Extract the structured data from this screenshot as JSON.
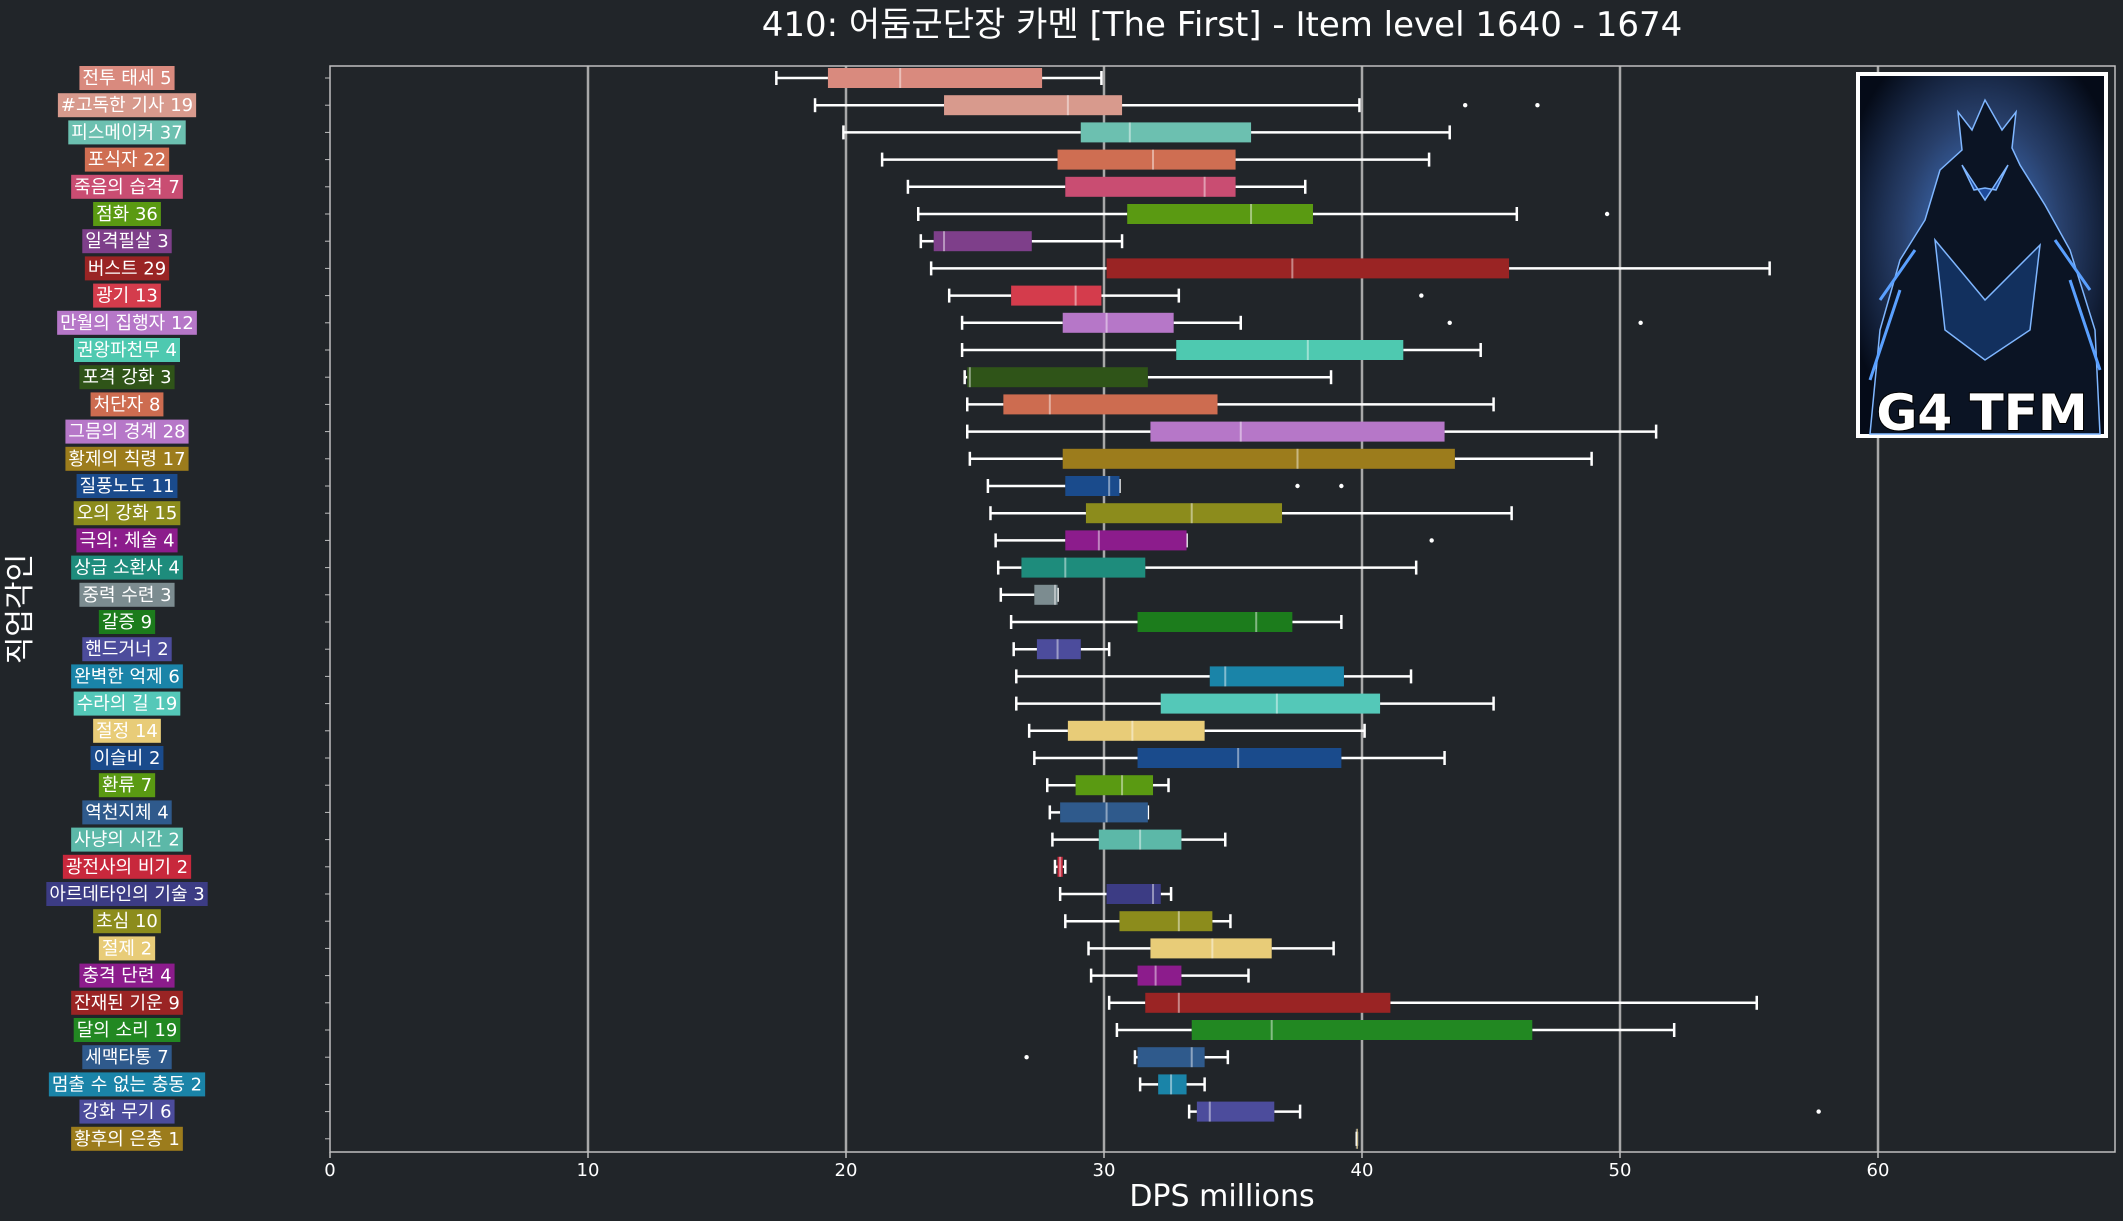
{
  "chart_data": {
    "type": "boxplot",
    "title": "410: 어둠군단장 카멘 [The First] - Item level 1640 - 1674",
    "xlabel": "DPS millions",
    "ylabel": "직업각인",
    "xlim": [
      0,
      69
    ],
    "xticks": [
      0,
      10,
      20,
      30,
      40,
      50,
      60
    ],
    "grid": "vertical",
    "badge": {
      "text": "G4 TFM",
      "position": "top-right"
    },
    "series": [
      {
        "label": "전투 태세 5",
        "color": "#d98a7e",
        "whisker_low": 17.3,
        "q1": 19.3,
        "median": 22.1,
        "q3": 27.6,
        "whisker_high": 29.9,
        "outliers": []
      },
      {
        "label": "#고독한 기사 19",
        "color": "#d89a8d",
        "whisker_low": 18.8,
        "q1": 23.8,
        "median": 28.6,
        "q3": 30.7,
        "whisker_high": 39.9,
        "outliers": [
          44.0,
          46.8
        ]
      },
      {
        "label": "피스메이커 37",
        "color": "#6cc0b0",
        "whisker_low": 19.9,
        "q1": 29.1,
        "median": 31.0,
        "q3": 35.7,
        "whisker_high": 43.4,
        "outliers": []
      },
      {
        "label": "포식자 22",
        "color": "#cf6e52",
        "whisker_low": 21.4,
        "q1": 28.2,
        "median": 31.9,
        "q3": 35.1,
        "whisker_high": 42.6,
        "outliers": []
      },
      {
        "label": "죽음의 습격 7",
        "color": "#c94d72",
        "whisker_low": 22.4,
        "q1": 28.5,
        "median": 33.9,
        "q3": 35.1,
        "whisker_high": 37.8,
        "outliers": []
      },
      {
        "label": "점화 36",
        "color": "#5a9a12",
        "whisker_low": 22.8,
        "q1": 30.9,
        "median": 35.7,
        "q3": 38.1,
        "whisker_high": 46.0,
        "outliers": [
          49.5
        ]
      },
      {
        "label": "일격필살 3",
        "color": "#7e3f8a",
        "whisker_low": 22.9,
        "q1": 23.4,
        "median": 23.8,
        "q3": 27.2,
        "whisker_high": 30.7,
        "outliers": []
      },
      {
        "label": "버스트 29",
        "color": "#9a2424",
        "whisker_low": 23.3,
        "q1": 30.1,
        "median": 37.3,
        "q3": 45.7,
        "whisker_high": 55.8,
        "outliers": []
      },
      {
        "label": "광기 13",
        "color": "#d43c4c",
        "whisker_low": 24.0,
        "q1": 26.4,
        "median": 28.9,
        "q3": 29.9,
        "whisker_high": 32.9,
        "outliers": [
          42.3
        ]
      },
      {
        "label": "만월의 집행자 12",
        "color": "#b677c8",
        "whisker_low": 24.5,
        "q1": 28.4,
        "median": 30.1,
        "q3": 32.7,
        "whisker_high": 35.3,
        "outliers": [
          43.4,
          50.8
        ]
      },
      {
        "label": "권왕파천무 4",
        "color": "#4ec9b0",
        "whisker_low": 24.5,
        "q1": 32.8,
        "median": 37.9,
        "q3": 41.6,
        "whisker_high": 44.6,
        "outliers": []
      },
      {
        "label": "포격 강화 3",
        "color": "#2f5418",
        "whisker_low": 24.6,
        "q1": 24.7,
        "median": 24.8,
        "q3": 31.7,
        "whisker_high": 38.8,
        "outliers": []
      },
      {
        "label": "처단자 8",
        "color": "#cd6c50",
        "whisker_low": 24.7,
        "q1": 26.1,
        "median": 27.9,
        "q3": 34.4,
        "whisker_high": 45.1,
        "outliers": []
      },
      {
        "label": "그믐의 경계 28",
        "color": "#b677c8",
        "whisker_low": 24.7,
        "q1": 31.8,
        "median": 35.3,
        "q3": 43.2,
        "whisker_high": 51.4,
        "outliers": []
      },
      {
        "label": "황제의 칙령 17",
        "color": "#9c7c1c",
        "whisker_low": 24.8,
        "q1": 28.4,
        "median": 37.5,
        "q3": 43.6,
        "whisker_high": 48.9,
        "outliers": []
      },
      {
        "label": "질풍노도 11",
        "color": "#1a4b8c",
        "whisker_low": 25.5,
        "q1": 28.5,
        "median": 30.2,
        "q3": 30.6,
        "whisker_high": 30.6,
        "outliers": [
          37.5,
          39.2
        ]
      },
      {
        "label": "오의 강화 15",
        "color": "#8c8c1c",
        "whisker_low": 25.6,
        "q1": 29.3,
        "median": 33.4,
        "q3": 36.9,
        "whisker_high": 45.8,
        "outliers": []
      },
      {
        "label": "극의: 체술 4",
        "color": "#8c1c8c",
        "whisker_low": 25.8,
        "q1": 28.5,
        "median": 29.8,
        "q3": 33.2,
        "whisker_high": 33.2,
        "outliers": [
          42.7
        ]
      },
      {
        "label": "상급 소환사 4",
        "color": "#1e8c7c",
        "whisker_low": 25.9,
        "q1": 26.8,
        "median": 28.5,
        "q3": 31.6,
        "whisker_high": 42.1,
        "outliers": []
      },
      {
        "label": "중력 수련 3",
        "color": "#7c8c90",
        "whisker_low": 26.0,
        "q1": 27.3,
        "median": 28.1,
        "q3": 28.2,
        "whisker_high": 28.2,
        "outliers": []
      },
      {
        "label": "갈증 9",
        "color": "#1c7c1c",
        "whisker_low": 26.4,
        "q1": 31.3,
        "median": 35.9,
        "q3": 37.3,
        "whisker_high": 39.2,
        "outliers": []
      },
      {
        "label": "핸드거너 2",
        "color": "#4c4c9c",
        "whisker_low": 26.5,
        "q1": 27.4,
        "median": 28.2,
        "q3": 29.1,
        "whisker_high": 30.2,
        "outliers": []
      },
      {
        "label": "완벽한 억제 6",
        "color": "#1a84a8",
        "whisker_low": 26.6,
        "q1": 34.1,
        "median": 34.7,
        "q3": 39.3,
        "whisker_high": 41.9,
        "outliers": []
      },
      {
        "label": "수라의 길 19",
        "color": "#54c8b8",
        "whisker_low": 26.6,
        "q1": 32.2,
        "median": 36.7,
        "q3": 40.7,
        "whisker_high": 45.1,
        "outliers": []
      },
      {
        "label": "절정 14",
        "color": "#e8cc78",
        "whisker_low": 27.1,
        "q1": 28.6,
        "median": 31.1,
        "q3": 33.9,
        "whisker_high": 40.1,
        "outliers": []
      },
      {
        "label": "이슬비 2",
        "color": "#1a4b8c",
        "whisker_low": 27.3,
        "q1": 31.3,
        "median": 35.2,
        "q3": 39.2,
        "whisker_high": 43.2,
        "outliers": []
      },
      {
        "label": "환류 7",
        "color": "#5a9a12",
        "whisker_low": 27.8,
        "q1": 28.9,
        "median": 30.7,
        "q3": 31.9,
        "whisker_high": 32.5,
        "outliers": []
      },
      {
        "label": "역천지체 4",
        "color": "#2f5a8c",
        "whisker_low": 27.9,
        "q1": 28.3,
        "median": 30.1,
        "q3": 31.7,
        "whisker_high": 31.7,
        "outliers": []
      },
      {
        "label": "사냥의 시간 2",
        "color": "#5cb8a8",
        "whisker_low": 28.0,
        "q1": 29.8,
        "median": 31.4,
        "q3": 33.0,
        "whisker_high": 34.7,
        "outliers": []
      },
      {
        "label": "광전사의 비기 2",
        "color": "#c8283c",
        "whisker_low": 28.1,
        "q1": 28.2,
        "median": 28.3,
        "q3": 28.4,
        "whisker_high": 28.5,
        "outliers": []
      },
      {
        "label": "아르데타인의 기술 3",
        "color": "#3c3c84",
        "whisker_low": 28.3,
        "q1": 30.1,
        "median": 31.9,
        "q3": 32.2,
        "whisker_high": 32.6,
        "outliers": []
      },
      {
        "label": "초심 10",
        "color": "#8c8c1c",
        "whisker_low": 28.5,
        "q1": 30.6,
        "median": 32.9,
        "q3": 34.2,
        "whisker_high": 34.9,
        "outliers": []
      },
      {
        "label": "절제 2",
        "color": "#e8cc78",
        "whisker_low": 29.4,
        "q1": 31.8,
        "median": 34.2,
        "q3": 36.5,
        "whisker_high": 38.9,
        "outliers": []
      },
      {
        "label": "충격 단련 4",
        "color": "#8c1c8c",
        "whisker_low": 29.5,
        "q1": 31.3,
        "median": 32.0,
        "q3": 33.0,
        "whisker_high": 35.6,
        "outliers": []
      },
      {
        "label": "잔재된 기운 9",
        "color": "#9a2424",
        "whisker_low": 30.2,
        "q1": 31.6,
        "median": 32.9,
        "q3": 41.1,
        "whisker_high": 55.3,
        "outliers": []
      },
      {
        "label": "달의 소리 19",
        "color": "#228822",
        "whisker_low": 30.5,
        "q1": 33.4,
        "median": 36.5,
        "q3": 46.6,
        "whisker_high": 52.1,
        "outliers": []
      },
      {
        "label": "세맥타통 7",
        "color": "#2f5a8c",
        "whisker_low": 31.2,
        "q1": 31.3,
        "median": 33.4,
        "q3": 33.9,
        "whisker_high": 34.8,
        "outliers": [
          27.0
        ]
      },
      {
        "label": "멈출 수 없는 충동 2",
        "color": "#1a84a8",
        "whisker_low": 31.4,
        "q1": 32.1,
        "median": 32.6,
        "q3": 33.2,
        "whisker_high": 33.9,
        "outliers": []
      },
      {
        "label": "강화 무기 6",
        "color": "#4c4c9c",
        "whisker_low": 33.3,
        "q1": 33.6,
        "median": 34.1,
        "q3": 36.6,
        "whisker_high": 37.6,
        "outliers": [
          57.7
        ]
      },
      {
        "label": "황후의 은총 1",
        "color": "#9c7c1c",
        "whisker_low": 39.8,
        "q1": 39.8,
        "median": 39.8,
        "q3": 39.8,
        "whisker_high": 39.8,
        "outliers": []
      }
    ]
  }
}
